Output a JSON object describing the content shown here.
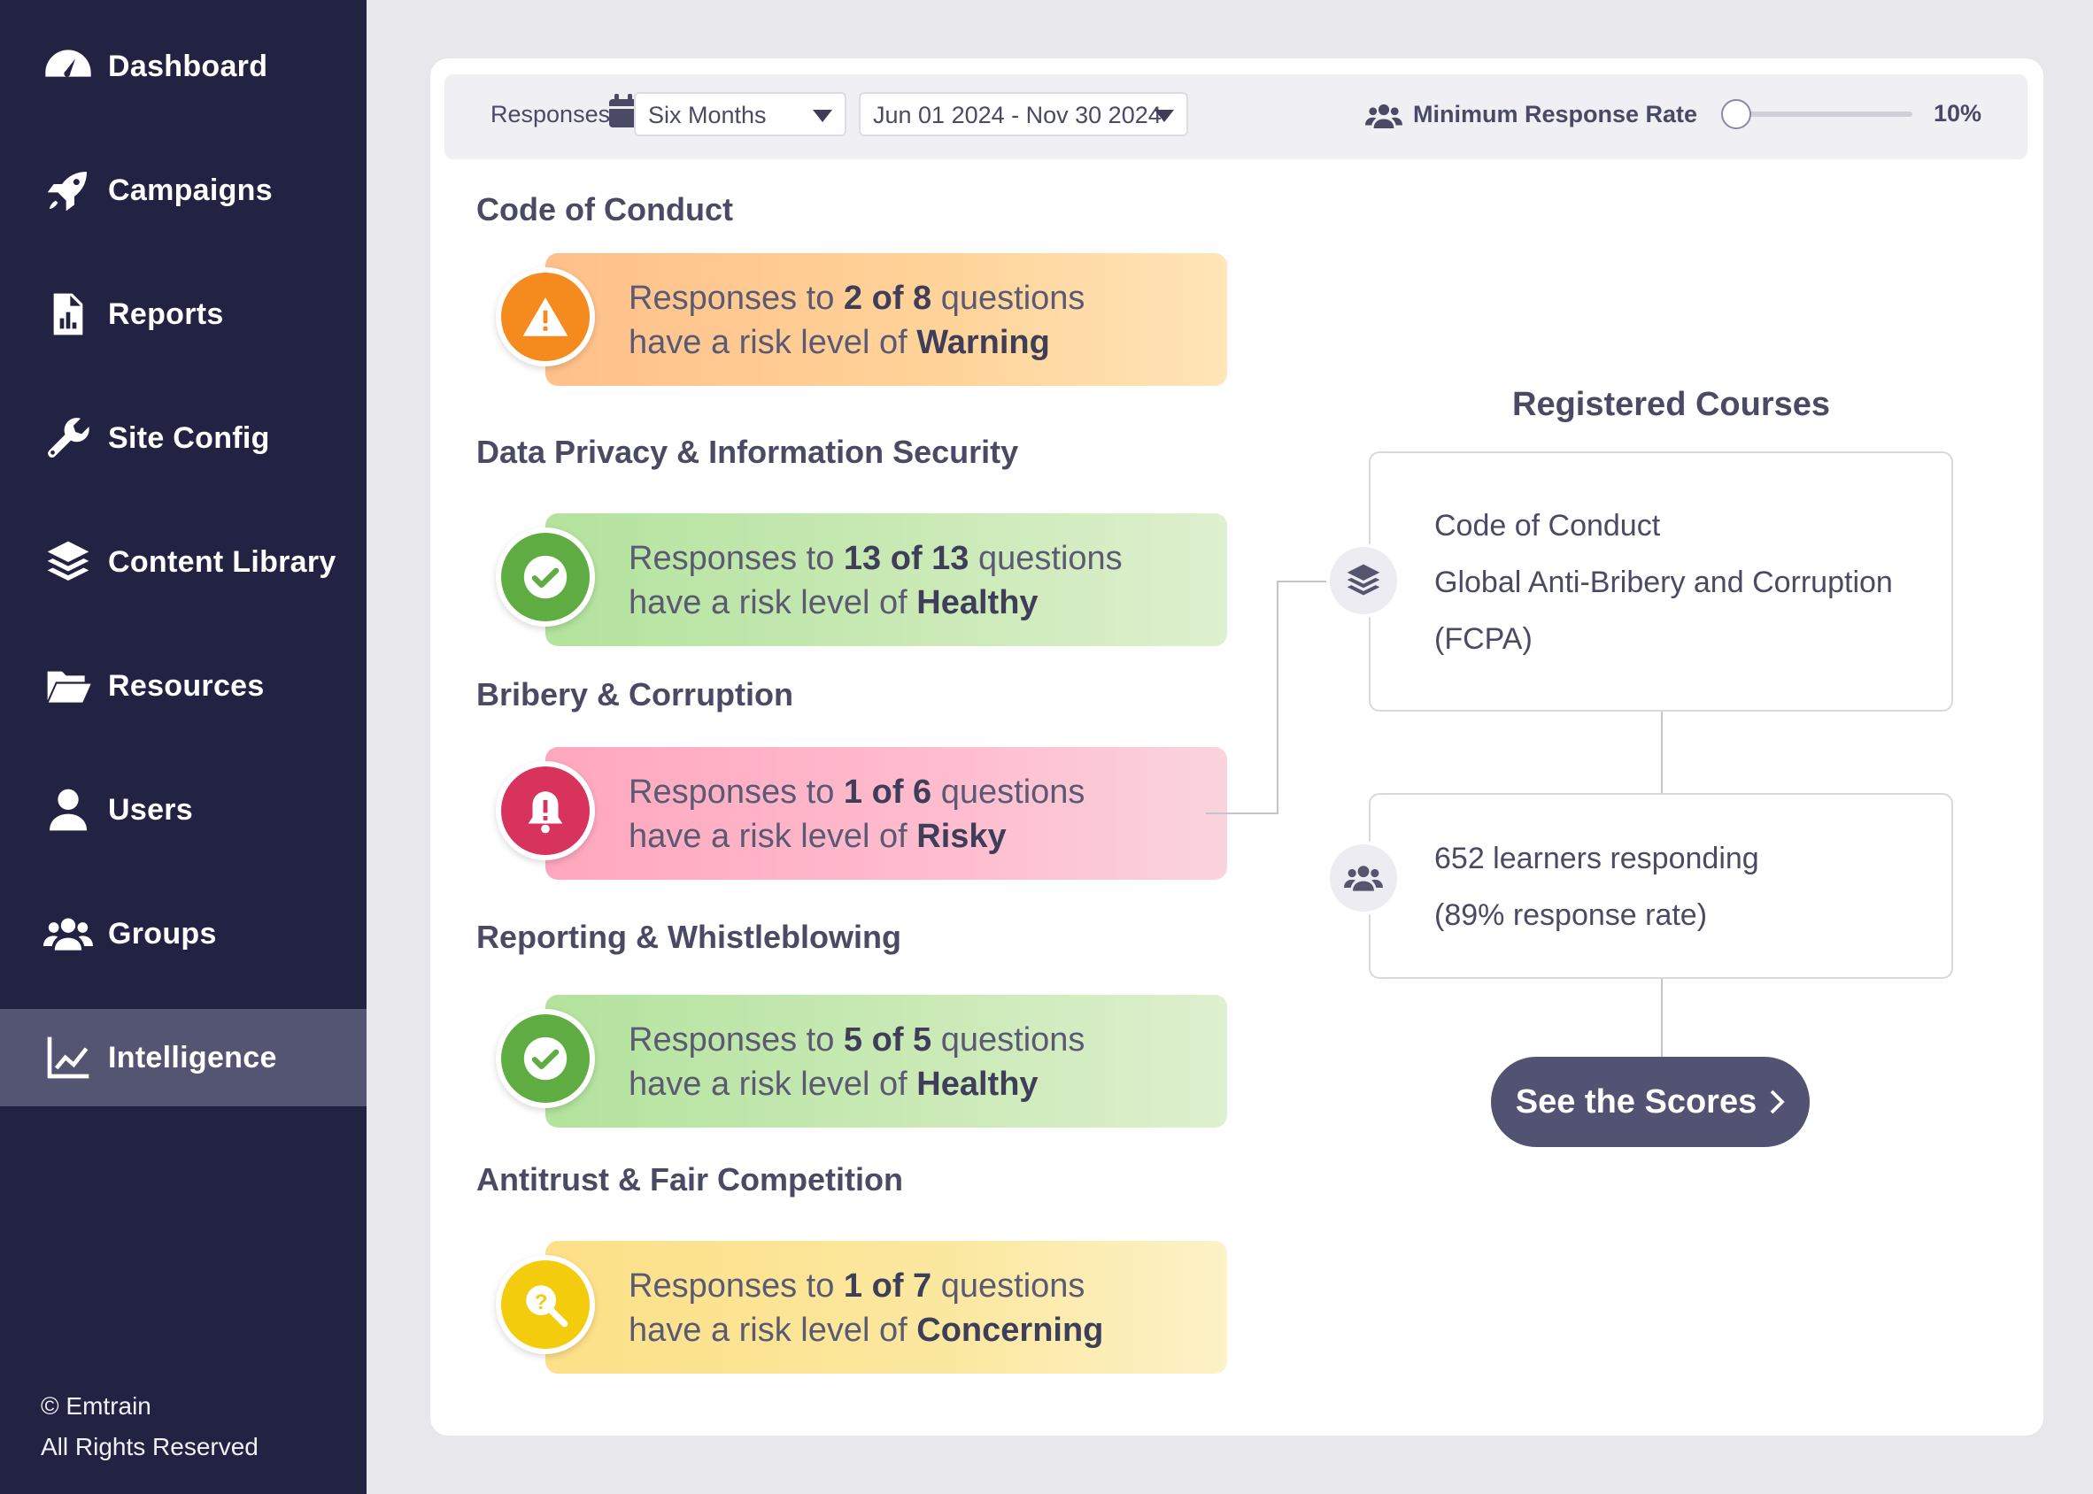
{
  "sidebar": {
    "items": [
      {
        "label": "Dashboard",
        "icon": "dashboard-gauge-icon"
      },
      {
        "label": "Campaigns",
        "icon": "rocket-icon"
      },
      {
        "label": "Reports",
        "icon": "report-file-icon"
      },
      {
        "label": "Site Config",
        "icon": "wrench-icon"
      },
      {
        "label": "Content Library",
        "icon": "layers-icon"
      },
      {
        "label": "Resources",
        "icon": "folder-open-icon"
      },
      {
        "label": "Users",
        "icon": "user-icon"
      },
      {
        "label": "Groups",
        "icon": "users-group-icon"
      },
      {
        "label": "Intelligence",
        "icon": "line-chart-icon",
        "active": true
      }
    ],
    "footer_line1": "© Emtrain",
    "footer_line2": "All Rights Reserved"
  },
  "filters": {
    "responses_label": "Responses",
    "period": "Six Months",
    "date_range": "Jun 01 2024 - Nov 30 2024",
    "min_rate_label": "Minimum Response Rate",
    "min_rate_value": "10%",
    "min_rate_fraction": 0.1
  },
  "categories": [
    {
      "title": "Code of Conduct",
      "pre": "Responses to ",
      "count": "2 of 8",
      "mid": " questions",
      "line2_pre": "have a risk level of ",
      "level": "Warning",
      "color": "#f58a1f"
    },
    {
      "title": "Data Privacy & Information Security",
      "pre": "Responses to ",
      "count": "13 of 13",
      "mid": " questions",
      "line2_pre": "have a risk level of ",
      "level": "Healthy",
      "color": "#5fac43"
    },
    {
      "title": "Bribery & Corruption",
      "pre": "Responses to ",
      "count": "1 of 6",
      "mid": " questions",
      "line2_pre": "have a risk level of ",
      "level": "Risky",
      "color": "#d8335d"
    },
    {
      "title": "Reporting & Whistleblowing",
      "pre": "Responses to ",
      "count": "5 of 5",
      "mid": " questions",
      "line2_pre": "have a risk level of ",
      "level": "Healthy",
      "color": "#5fac43"
    },
    {
      "title": "Antitrust & Fair Competition",
      "pre": "Responses to ",
      "count": "1 of 7",
      "mid": " questions",
      "line2_pre": "have a risk level of ",
      "level": "Concerning",
      "color": "#f3cc0d"
    }
  ],
  "registered": {
    "title": "Registered Courses",
    "courses": [
      "Code of Conduct",
      "Global Anti-Bribery and Corruption",
      "(FCPA)"
    ],
    "learners_line1": "652 learners responding",
    "learners_line2": "(89% response rate)",
    "button": "See the Scores",
    "button_icon": "chevron-right-icon"
  }
}
